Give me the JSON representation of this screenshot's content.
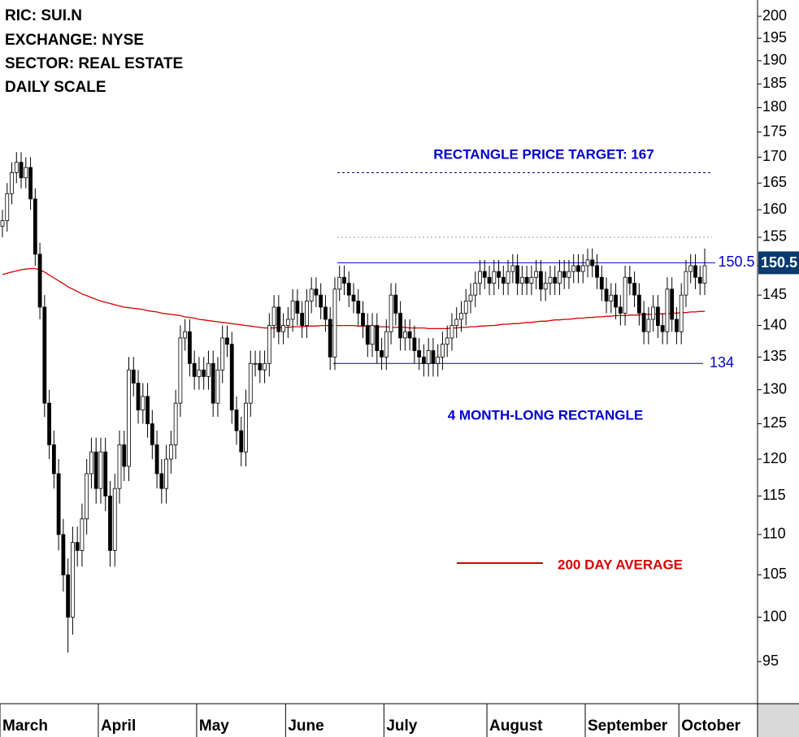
{
  "chart_data": {
    "type": "candlestick",
    "info": [
      "RIC: SUI.N",
      "EXCHANGE: NYSE",
      "SECTOR: REAL ESTATE",
      "DAILY SCALE"
    ],
    "texts": [
      "RECTANGLE PRICE TARGET: 167",
      "4 MONTH-LONG RECTANGLE"
    ],
    "log_scale": true,
    "ylim": [
      90.5,
      203.8
    ],
    "yticks": [
      95,
      100,
      105,
      110,
      115,
      120,
      125,
      130,
      135,
      140,
      145,
      150,
      155,
      160,
      165,
      170,
      175,
      180,
      185,
      190,
      195,
      200
    ],
    "categories": [
      "March",
      null,
      null,
      null,
      null,
      null,
      null,
      null,
      null,
      null,
      null,
      null,
      null,
      null,
      null,
      null,
      null,
      null,
      null,
      null,
      null,
      "April",
      null,
      null,
      null,
      null,
      null,
      null,
      null,
      null,
      null,
      null,
      null,
      null,
      null,
      null,
      null,
      null,
      null,
      null,
      null,
      null,
      "May",
      null,
      null,
      null,
      null,
      null,
      null,
      null,
      null,
      null,
      null,
      null,
      null,
      null,
      null,
      null,
      null,
      null,
      null,
      "June",
      null,
      null,
      null,
      null,
      null,
      null,
      null,
      null,
      null,
      null,
      null,
      null,
      null,
      null,
      null,
      null,
      null,
      null,
      null,
      null,
      "July",
      null,
      null,
      null,
      null,
      null,
      null,
      null,
      null,
      null,
      null,
      null,
      null,
      null,
      null,
      null,
      null,
      null,
      null,
      null,
      null,
      null,
      "August",
      null,
      null,
      null,
      null,
      null,
      null,
      null,
      null,
      null,
      null,
      null,
      null,
      null,
      null,
      null,
      null,
      null,
      null,
      null,
      null,
      "September",
      null,
      null,
      null,
      null,
      null,
      null,
      null,
      null,
      null,
      null,
      null,
      null,
      null,
      null,
      null,
      null,
      null,
      null,
      null,
      "October",
      null,
      null,
      null,
      null,
      null
    ],
    "open": [
      157,
      158,
      163,
      167,
      169,
      166,
      168,
      162,
      152,
      143,
      128,
      122,
      118,
      110,
      105,
      100,
      109,
      108,
      112,
      118,
      121,
      116,
      121,
      115,
      108,
      116,
      122,
      119,
      133,
      131,
      127,
      129,
      125,
      122,
      118,
      116,
      120,
      122,
      128,
      138,
      139,
      134,
      132,
      133,
      132,
      134,
      128,
      133,
      138,
      137,
      127,
      124,
      121,
      128,
      134,
      134,
      133,
      134,
      140,
      143,
      139,
      140,
      141,
      144,
      142,
      140,
      144,
      146,
      145,
      143,
      141,
      135,
      146,
      148,
      147,
      145,
      144,
      142,
      140,
      137,
      140,
      136,
      135,
      139,
      145,
      142,
      138,
      139,
      138,
      136,
      135,
      134,
      136,
      134,
      135,
      137,
      138,
      140,
      141,
      142,
      144,
      145,
      147,
      149,
      148,
      147,
      149,
      148,
      147,
      149,
      150,
      147,
      148,
      147,
      148,
      149,
      146,
      147,
      148,
      147,
      149,
      148,
      149,
      150,
      149,
      150,
      151,
      150,
      148,
      146,
      144,
      145,
      143,
      142,
      148,
      147,
      145,
      142,
      139,
      141,
      143,
      140,
      139,
      146,
      141,
      139,
      145,
      149,
      150,
      148,
      147
    ],
    "high": [
      160,
      165,
      169,
      171,
      171,
      170,
      170,
      164,
      154,
      145,
      130,
      124,
      120,
      112,
      107,
      111,
      111,
      114,
      120,
      123,
      123,
      123,
      123,
      117,
      118,
      124,
      124,
      135,
      135,
      133,
      131,
      131,
      127,
      124,
      120,
      122,
      124,
      130,
      140,
      141,
      141,
      136,
      135,
      135,
      136,
      136,
      135,
      140,
      140,
      139,
      129,
      126,
      130,
      136,
      136,
      136,
      136,
      142,
      145,
      145,
      142,
      143,
      146,
      146,
      144,
      146,
      148,
      148,
      147,
      145,
      143,
      148,
      150,
      150,
      149,
      147,
      146,
      144,
      142,
      142,
      142,
      138,
      141,
      147,
      147,
      144,
      141,
      141,
      140,
      138,
      137,
      138,
      138,
      137,
      139,
      140,
      142,
      143,
      144,
      146,
      147,
      149,
      151,
      151,
      150,
      151,
      151,
      150,
      151,
      152,
      152,
      150,
      150,
      150,
      151,
      151,
      149,
      150,
      150,
      151,
      151,
      151,
      152,
      152,
      152,
      153,
      153,
      152,
      150,
      148,
      147,
      147,
      145,
      150,
      150,
      149,
      147,
      144,
      143,
      145,
      145,
      142,
      148,
      148,
      143,
      147,
      151,
      152,
      152,
      150,
      153
    ],
    "low": [
      155,
      156,
      161,
      165,
      164,
      164,
      160,
      150,
      141,
      126,
      120,
      116,
      108,
      103,
      96,
      98,
      106,
      106,
      110,
      116,
      114,
      114,
      113,
      106,
      106,
      114,
      117,
      117,
      129,
      125,
      125,
      123,
      120,
      116,
      114,
      114,
      118,
      120,
      126,
      136,
      132,
      130,
      130,
      130,
      130,
      126,
      126,
      131,
      135,
      125,
      122,
      119,
      119,
      126,
      132,
      131,
      131,
      132,
      138,
      137,
      137,
      138,
      139,
      140,
      138,
      138,
      142,
      143,
      141,
      139,
      133,
      133,
      144,
      145,
      143,
      142,
      140,
      138,
      135,
      135,
      134,
      133,
      133,
      137,
      140,
      136,
      136,
      136,
      134,
      133,
      132,
      132,
      132,
      132,
      133,
      135,
      136,
      138,
      139,
      140,
      142,
      143,
      145,
      146,
      145,
      145,
      146,
      145,
      145,
      147,
      145,
      145,
      145,
      145,
      146,
      144,
      144,
      145,
      145,
      145,
      146,
      146,
      147,
      147,
      147,
      148,
      148,
      146,
      144,
      142,
      142,
      141,
      140,
      140,
      145,
      143,
      140,
      137,
      137,
      139,
      138,
      137,
      137,
      139,
      137,
      137,
      143,
      147,
      146,
      145,
      145
    ],
    "close": [
      158,
      163,
      167,
      169,
      166,
      168,
      162,
      152,
      143,
      128,
      122,
      118,
      110,
      105,
      100,
      109,
      108,
      112,
      118,
      121,
      116,
      121,
      115,
      108,
      116,
      122,
      119,
      133,
      131,
      127,
      129,
      125,
      122,
      118,
      116,
      120,
      122,
      128,
      138,
      139,
      134,
      132,
      133,
      132,
      134,
      128,
      133,
      138,
      137,
      127,
      124,
      121,
      128,
      134,
      134,
      133,
      134,
      140,
      143,
      139,
      140,
      141,
      144,
      142,
      140,
      144,
      146,
      145,
      143,
      141,
      135,
      146,
      148,
      147,
      145,
      144,
      142,
      140,
      137,
      140,
      136,
      135,
      139,
      145,
      142,
      138,
      139,
      138,
      136,
      135,
      134,
      136,
      134,
      135,
      137,
      138,
      140,
      141,
      142,
      144,
      145,
      147,
      149,
      148,
      147,
      149,
      148,
      147,
      149,
      150,
      147,
      148,
      147,
      148,
      149,
      146,
      147,
      148,
      147,
      149,
      148,
      149,
      150,
      149,
      150,
      151,
      150,
      148,
      146,
      144,
      145,
      143,
      142,
      148,
      147,
      145,
      142,
      139,
      141,
      143,
      140,
      139,
      146,
      141,
      139,
      145,
      149,
      150,
      148,
      147,
      150
    ],
    "series": [
      {
        "name": "200 DAY AVERAGE",
        "color": "#d40000",
        "values": [
          148.5,
          148.7,
          148.9,
          149.1,
          149.3,
          149.4,
          149.5,
          149.5,
          149.3,
          148.9,
          148.4,
          147.9,
          147.4,
          146.9,
          146.4,
          146.0,
          145.6,
          145.2,
          144.9,
          144.6,
          144.3,
          144.0,
          143.8,
          143.6,
          143.4,
          143.2,
          143.0,
          142.9,
          142.8,
          142.7,
          142.6,
          142.4,
          142.3,
          142.2,
          142.0,
          141.9,
          141.8,
          141.7,
          141.6,
          141.4,
          141.3,
          141.2,
          141.0,
          140.9,
          140.8,
          140.7,
          140.6,
          140.5,
          140.4,
          140.3,
          140.2,
          140.1,
          140.0,
          139.9,
          139.8,
          139.7,
          139.6,
          139.6,
          139.6,
          139.7,
          139.7,
          139.7,
          139.8,
          139.8,
          139.8,
          139.9,
          139.9,
          139.9,
          140.0,
          140.0,
          140.0,
          140.0,
          140.0,
          140.0,
          140.0,
          140.0,
          139.9,
          139.9,
          139.9,
          139.9,
          139.8,
          139.8,
          139.8,
          139.7,
          139.7,
          139.7,
          139.7,
          139.6,
          139.6,
          139.6,
          139.6,
          139.5,
          139.5,
          139.5,
          139.5,
          139.5,
          139.6,
          139.6,
          139.7,
          139.7,
          139.8,
          139.8,
          139.9,
          139.9,
          140.0,
          140.0,
          140.1,
          140.2,
          140.2,
          140.3,
          140.3,
          140.4,
          140.5,
          140.5,
          140.6,
          140.7,
          140.7,
          140.8,
          140.9,
          140.9,
          141.0,
          141.0,
          141.1,
          141.2,
          141.2,
          141.3,
          141.3,
          141.4,
          141.4,
          141.5,
          141.5,
          141.6,
          141.6,
          141.6,
          141.7,
          141.7,
          141.7,
          141.8,
          141.8,
          141.8,
          141.9,
          141.9,
          141.9,
          142.0,
          142.0,
          142.1,
          142.1,
          142.2,
          142.2,
          142.3,
          142.3
        ]
      }
    ],
    "levels": [
      {
        "value": 167,
        "color": "#000080",
        "dash": "3,3"
      },
      {
        "value": 155,
        "color": "#999999",
        "dash": "2,3"
      },
      {
        "value": 150.5,
        "color": "#0000cc"
      },
      {
        "value": 134,
        "color": "#0000cc"
      }
    ],
    "last_price": 150.5,
    "up_color": "#ffffff",
    "down_color": "#000000"
  }
}
